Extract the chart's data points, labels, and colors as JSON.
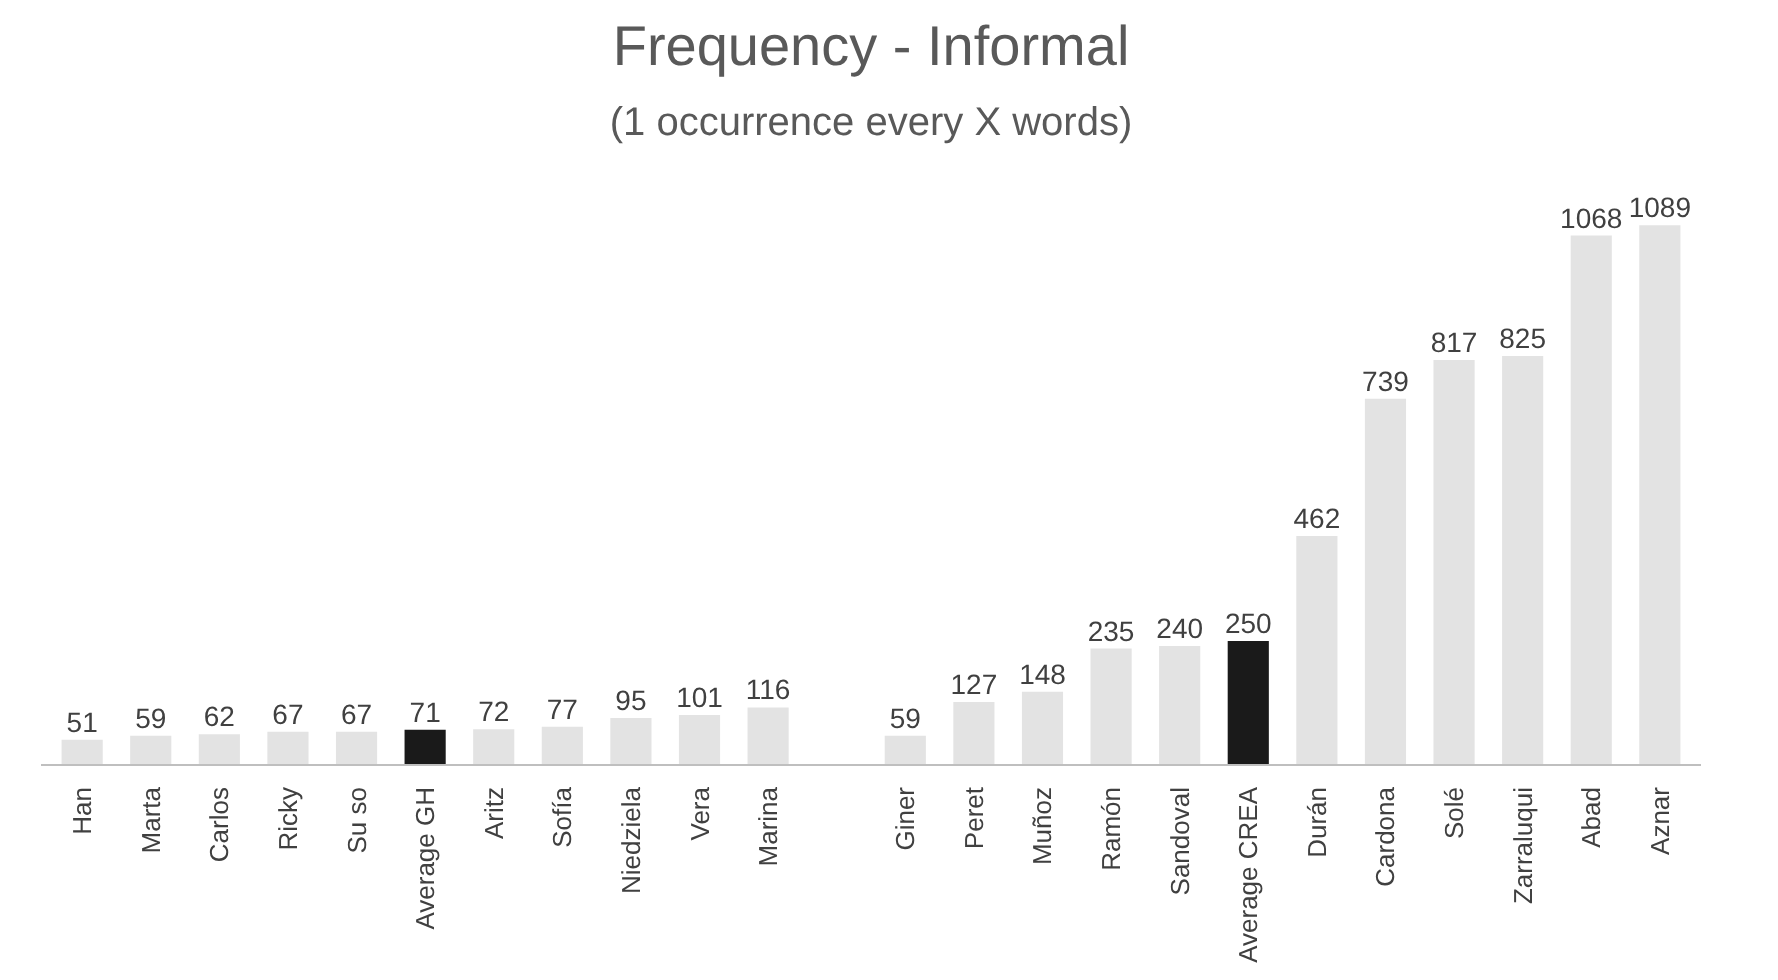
{
  "chart_data": {
    "type": "bar",
    "title": "Frequency - Informal",
    "subtitle": "(1 occurrence every X words)",
    "categories": [
      "Han",
      "Marta",
      "Carlos",
      "Ricky",
      "Su so",
      "Average GH",
      "Aritz",
      "Sofía",
      "Niedziela",
      "Vera",
      "Marina",
      null,
      "Giner",
      "Peret",
      "Muñoz",
      "Ramón",
      "Sandoval",
      "Average CREA",
      "Durán",
      "Cardona",
      "Solé",
      "Zarraluqui",
      "Abad",
      "Aznar"
    ],
    "values": [
      51,
      59,
      62,
      67,
      67,
      71,
      72,
      77,
      95,
      101,
      116,
      null,
      59,
      127,
      148,
      235,
      240,
      250,
      462,
      739,
      817,
      825,
      1068,
      1089
    ],
    "colors": [
      "#e3e3e3",
      "#e3e3e3",
      "#e3e3e3",
      "#e3e3e3",
      "#e3e3e3",
      "#1a1a1a",
      "#e3e3e3",
      "#e3e3e3",
      "#e3e3e3",
      "#e3e3e3",
      "#e3e3e3",
      null,
      "#e3e3e3",
      "#e3e3e3",
      "#e3e3e3",
      "#e3e3e3",
      "#e3e3e3",
      "#1a1a1a",
      "#e3e3e3",
      "#e3e3e3",
      "#e3e3e3",
      "#e3e3e3",
      "#e3e3e3",
      "#e3e3e3"
    ],
    "data_labels": true
  }
}
